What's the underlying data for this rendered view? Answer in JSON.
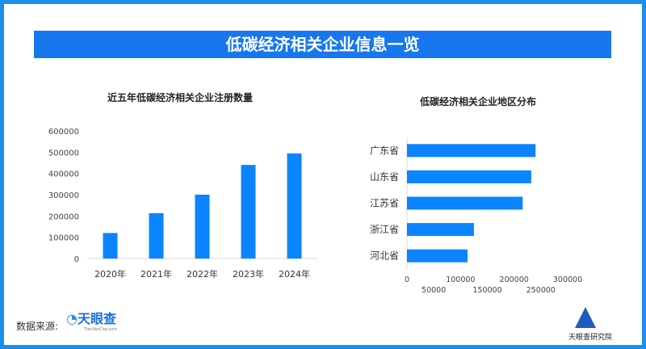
{
  "title": "低碳经济相关企业信息一览",
  "chart_data": [
    {
      "type": "bar",
      "title": "近五年低碳经济相关企业注册数量",
      "categories": [
        "2020年",
        "2021年",
        "2022年",
        "2023年",
        "2024年"
      ],
      "values": [
        120000,
        213000,
        300000,
        440000,
        494000
      ],
      "ylim": [
        0,
        600000
      ],
      "yticks": [
        "0",
        "100000",
        "200000",
        "300000",
        "400000",
        "500000",
        "600000"
      ],
      "color": "#0a84ff",
      "grid": false
    },
    {
      "type": "bar",
      "orientation": "horizontal",
      "title": "低碳经济相关企业地区分布",
      "categories": [
        "广东省",
        "山东省",
        "江苏省",
        "浙江省",
        "河北省"
      ],
      "values": [
        240000,
        232000,
        216000,
        125000,
        113000
      ],
      "xlim": [
        0,
        300000
      ],
      "xticks": [
        "0",
        "50000",
        "100000",
        "150000",
        "200000",
        "250000",
        "300000"
      ],
      "color": "#0a84ff",
      "grid": false
    }
  ],
  "footer": {
    "source_label": "数据来源:",
    "source_logo": "天眼查",
    "source_logo_sub": "TianYanCha.com",
    "institute_logo": "天眼查研究院"
  }
}
